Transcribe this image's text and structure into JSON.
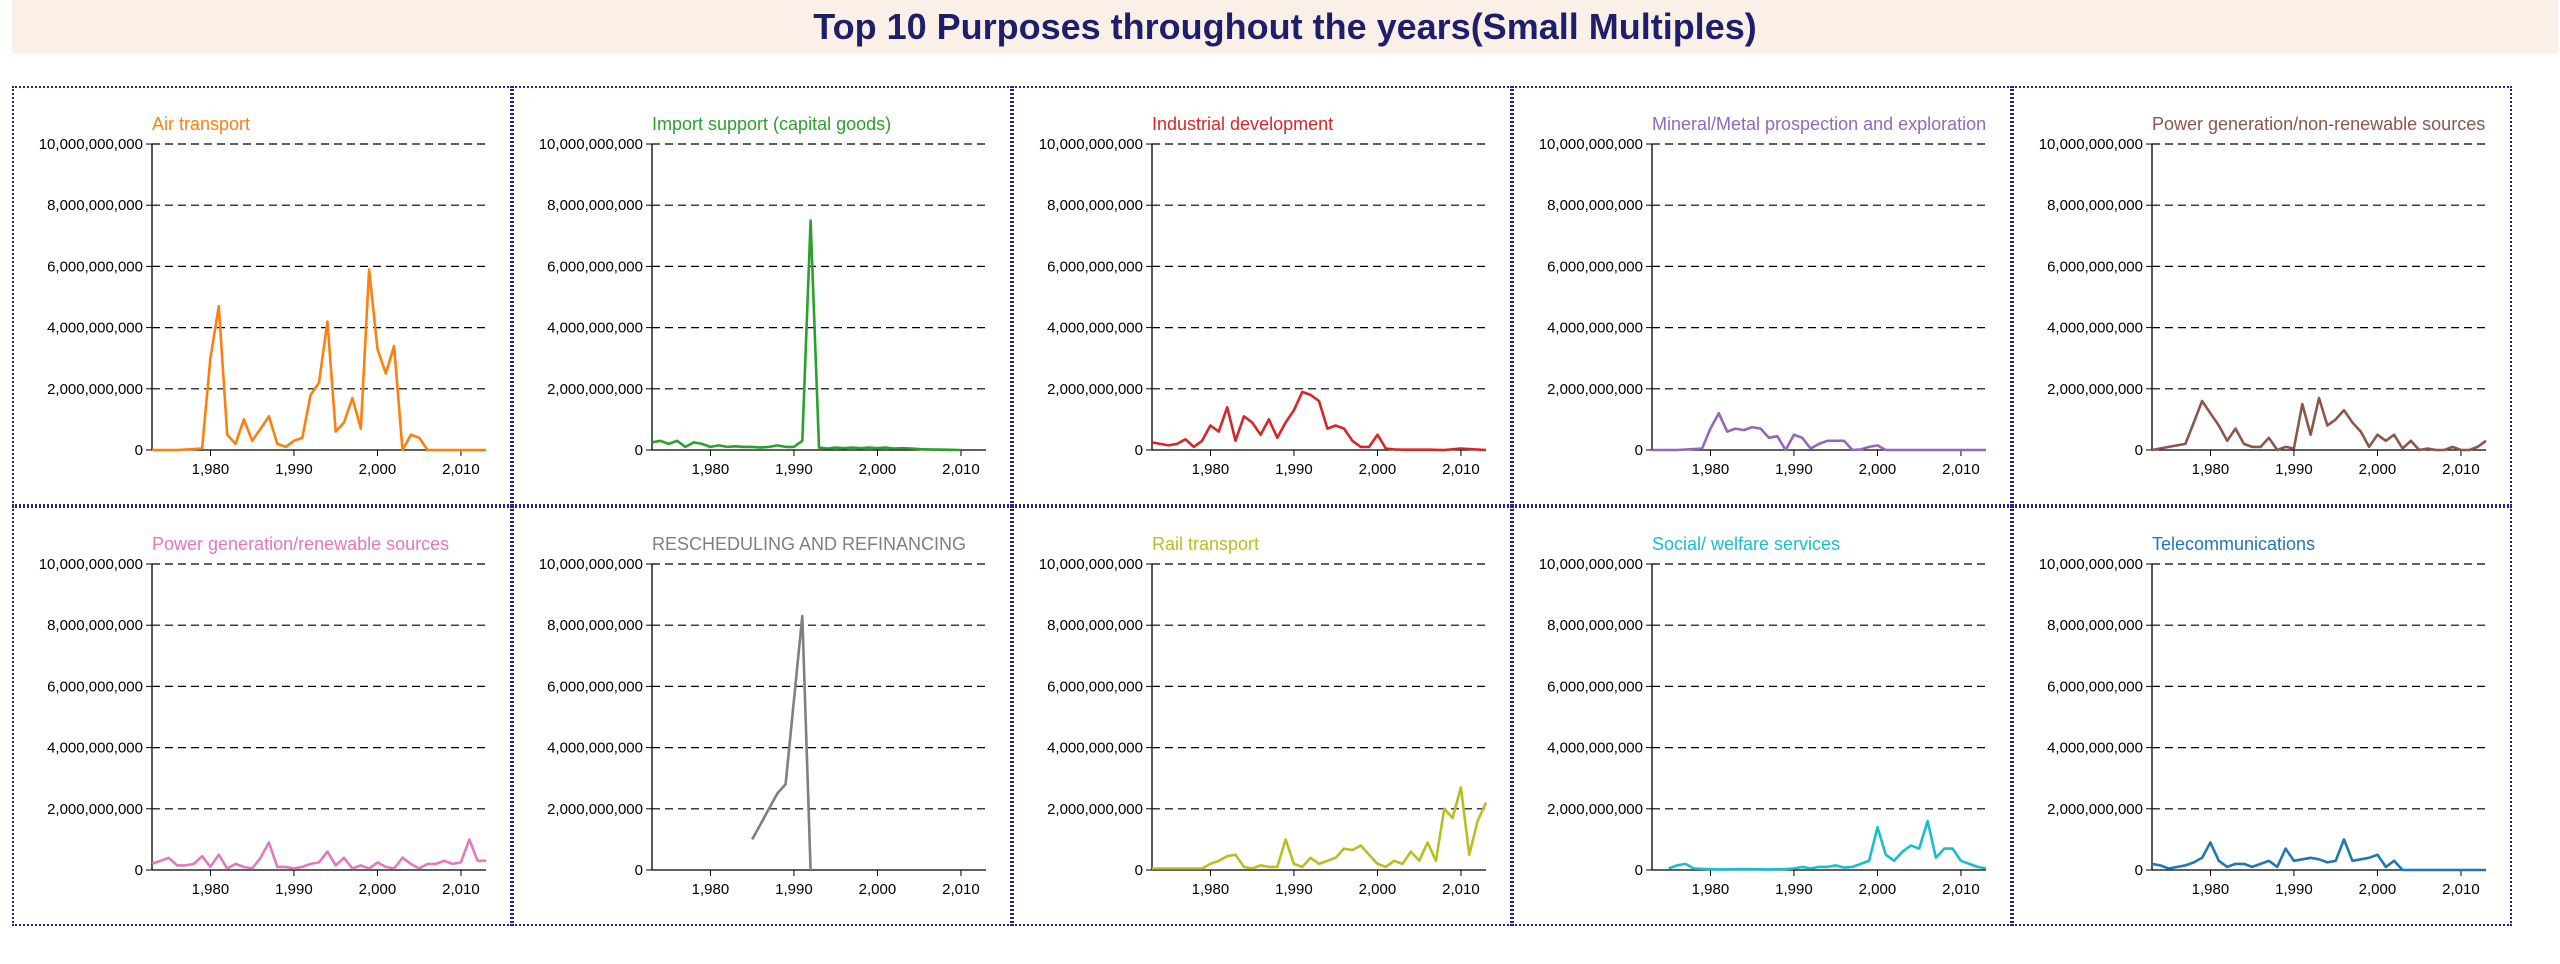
{
  "title": "Top 10 Purposes throughout the years(Small Multiples)",
  "chart_data": {
    "type": "line",
    "layout": "small-multiples",
    "x_ticks": [
      1980,
      1990,
      2000,
      2010
    ],
    "x_tick_labels": [
      "1,980",
      "1,990",
      "2,000",
      "2,010"
    ],
    "xlim": [
      1973,
      2013
    ],
    "ylim": [
      0,
      10000000000
    ],
    "y_ticks": [
      0,
      2000000000,
      4000000000,
      6000000000,
      8000000000,
      10000000000
    ],
    "y_tick_labels": [
      "0",
      "2,000,000,000",
      "4,000,000,000",
      "6,000,000,000",
      "8,000,000,000",
      "10,000,000,000"
    ],
    "grid": "horizontal-dashed",
    "series": [
      {
        "name": "Air transport",
        "color": "#ff7f0e",
        "x": [
          1973,
          1976,
          1979,
          1980,
          1981,
          1982,
          1983,
          1984,
          1985,
          1986,
          1987,
          1988,
          1989,
          1990,
          1991,
          1992,
          1993,
          1994,
          1995,
          1996,
          1997,
          1998,
          1999,
          2000,
          2001,
          2002,
          2003,
          2004,
          2005,
          2006,
          2010,
          2013
        ],
        "y": [
          0,
          0,
          50000000,
          3000000000,
          4700000000,
          500000000,
          200000000,
          1000000000,
          300000000,
          700000000,
          1100000000,
          200000000,
          100000000,
          300000000,
          400000000,
          1800000000,
          2200000000,
          4200000000,
          600000000,
          900000000,
          1700000000,
          700000000,
          5900000000,
          3300000000,
          2500000000,
          3400000000,
          0,
          500000000,
          400000000,
          0,
          0,
          0
        ]
      },
      {
        "name": "Import support (capital goods)",
        "color": "#2ca02c",
        "x": [
          1973,
          1974,
          1975,
          1976,
          1977,
          1978,
          1979,
          1980,
          1981,
          1982,
          1983,
          1984,
          1985,
          1986,
          1987,
          1988,
          1989,
          1990,
          1991,
          1992,
          1993,
          1994,
          1995,
          1996,
          1997,
          1998,
          1999,
          2000,
          2001,
          2002,
          2003,
          2004,
          2005,
          2006,
          2008,
          2010
        ],
        "y": [
          250000000,
          300000000,
          200000000,
          300000000,
          100000000,
          250000000,
          200000000,
          100000000,
          150000000,
          100000000,
          120000000,
          100000000,
          100000000,
          80000000,
          100000000,
          150000000,
          100000000,
          100000000,
          300000000,
          7500000000,
          80000000,
          50000000,
          80000000,
          60000000,
          80000000,
          60000000,
          80000000,
          60000000,
          80000000,
          50000000,
          60000000,
          50000000,
          30000000,
          20000000,
          10000000,
          0
        ]
      },
      {
        "name": "Industrial development",
        "color": "#d62728",
        "x": [
          1973,
          1975,
          1976,
          1977,
          1978,
          1979,
          1980,
          1981,
          1982,
          1983,
          1984,
          1985,
          1986,
          1987,
          1988,
          1989,
          1990,
          1991,
          1992,
          1993,
          1994,
          1995,
          1996,
          1997,
          1998,
          1999,
          2000,
          2001,
          2002,
          2003,
          2004,
          2006,
          2008,
          2010,
          2013
        ],
        "y": [
          250000000,
          150000000,
          200000000,
          350000000,
          100000000,
          300000000,
          800000000,
          600000000,
          1400000000,
          300000000,
          1100000000,
          900000000,
          500000000,
          1000000000,
          400000000,
          900000000,
          1300000000,
          1900000000,
          1800000000,
          1600000000,
          700000000,
          800000000,
          700000000,
          300000000,
          100000000,
          100000000,
          500000000,
          50000000,
          20000000,
          10000000,
          10000000,
          10000000,
          0,
          50000000,
          0
        ]
      },
      {
        "name": "Mineral/Metal prospection and exploration",
        "color": "#9467bd",
        "x": [
          1973,
          1976,
          1979,
          1980,
          1981,
          1982,
          1983,
          1984,
          1985,
          1986,
          1987,
          1988,
          1989,
          1990,
          1991,
          1992,
          1993,
          1994,
          1995,
          1996,
          1997,
          1998,
          1999,
          2000,
          2001,
          2002,
          2006,
          2010,
          2013
        ],
        "y": [
          0,
          0,
          50000000,
          700000000,
          1200000000,
          600000000,
          700000000,
          650000000,
          750000000,
          700000000,
          400000000,
          450000000,
          0,
          500000000,
          400000000,
          50000000,
          200000000,
          300000000,
          300000000,
          300000000,
          0,
          20000000,
          100000000,
          150000000,
          0,
          0,
          0,
          0,
          0
        ]
      },
      {
        "name": "Power generation/non-renewable sources",
        "color": "#8c564b",
        "x": [
          1973,
          1975,
          1977,
          1978,
          1979,
          1980,
          1981,
          1982,
          1983,
          1984,
          1985,
          1986,
          1987,
          1988,
          1989,
          1990,
          1991,
          1992,
          1993,
          1994,
          1995,
          1996,
          1997,
          1998,
          1999,
          2000,
          2001,
          2002,
          2003,
          2004,
          2005,
          2006,
          2007,
          2008,
          2009,
          2010,
          2011,
          2012,
          2013
        ],
        "y": [
          0,
          100000000,
          200000000,
          900000000,
          1600000000,
          1200000000,
          800000000,
          300000000,
          700000000,
          200000000,
          100000000,
          100000000,
          400000000,
          0,
          100000000,
          50000000,
          1500000000,
          500000000,
          1700000000,
          800000000,
          1000000000,
          1300000000,
          900000000,
          600000000,
          100000000,
          500000000,
          300000000,
          500000000,
          50000000,
          300000000,
          0,
          50000000,
          0,
          0,
          100000000,
          0,
          0,
          100000000,
          300000000
        ]
      },
      {
        "name": "Power generation/renewable sources",
        "color": "#e377c2",
        "x": [
          1973,
          1974,
          1975,
          1976,
          1977,
          1978,
          1979,
          1980,
          1981,
          1982,
          1983,
          1984,
          1985,
          1986,
          1987,
          1988,
          1989,
          1990,
          1991,
          1992,
          1993,
          1994,
          1995,
          1996,
          1997,
          1998,
          1999,
          2000,
          2001,
          2002,
          2003,
          2004,
          2005,
          2006,
          2007,
          2008,
          2009,
          2010,
          2011,
          2012,
          2013
        ],
        "y": [
          200000000,
          300000000,
          400000000,
          150000000,
          150000000,
          200000000,
          450000000,
          100000000,
          500000000,
          50000000,
          200000000,
          100000000,
          50000000,
          400000000,
          900000000,
          100000000,
          100000000,
          50000000,
          100000000,
          200000000,
          250000000,
          600000000,
          150000000,
          400000000,
          50000000,
          150000000,
          50000000,
          250000000,
          100000000,
          50000000,
          400000000,
          200000000,
          50000000,
          200000000,
          200000000,
          300000000,
          200000000,
          250000000,
          1000000000,
          300000000,
          300000000
        ]
      },
      {
        "name": "RESCHEDULING AND REFINANCING",
        "color": "#7f7f7f",
        "x": [
          1985,
          1988,
          1989,
          1991,
          1992
        ],
        "y": [
          1000000000,
          2500000000,
          2800000000,
          8300000000,
          0
        ]
      },
      {
        "name": "Rail transport",
        "color": "#bcbd22",
        "x": [
          1973,
          1976,
          1977,
          1978,
          1979,
          1980,
          1981,
          1982,
          1983,
          1984,
          1985,
          1986,
          1987,
          1988,
          1989,
          1990,
          1991,
          1992,
          1993,
          1994,
          1995,
          1996,
          1997,
          1998,
          1999,
          2000,
          2001,
          2002,
          2003,
          2004,
          2005,
          2006,
          2007,
          2008,
          2009,
          2010,
          2011,
          2012,
          2013
        ],
        "y": [
          50000000,
          50000000,
          50000000,
          50000000,
          50000000,
          200000000,
          300000000,
          450000000,
          500000000,
          100000000,
          50000000,
          150000000,
          100000000,
          100000000,
          1000000000,
          200000000,
          100000000,
          400000000,
          200000000,
          300000000,
          400000000,
          700000000,
          650000000,
          800000000,
          500000000,
          200000000,
          100000000,
          300000000,
          200000000,
          600000000,
          300000000,
          900000000,
          300000000,
          2000000000,
          1700000000,
          2700000000,
          500000000,
          1600000000,
          2200000000
        ]
      },
      {
        "name": "Social/ welfare services",
        "color": "#17becf",
        "x": [
          1975,
          1976,
          1977,
          1978,
          1981,
          1984,
          1987,
          1989,
          1990,
          1991,
          1992,
          1993,
          1994,
          1995,
          1996,
          1997,
          1998,
          1999,
          2000,
          2001,
          2002,
          2003,
          2004,
          2005,
          2006,
          2007,
          2008,
          2009,
          2010,
          2011,
          2012,
          2013
        ],
        "y": [
          50000000,
          150000000,
          200000000,
          50000000,
          20000000,
          30000000,
          20000000,
          30000000,
          50000000,
          100000000,
          50000000,
          100000000,
          100000000,
          150000000,
          80000000,
          100000000,
          200000000,
          300000000,
          1400000000,
          500000000,
          300000000,
          600000000,
          800000000,
          700000000,
          1600000000,
          400000000,
          700000000,
          700000000,
          300000000,
          200000000,
          100000000,
          50000000
        ]
      },
      {
        "name": "Telecommunications",
        "color": "#1f77b4",
        "x": [
          1973,
          1974,
          1975,
          1977,
          1978,
          1979,
          1980,
          1981,
          1982,
          1983,
          1984,
          1985,
          1986,
          1987,
          1988,
          1989,
          1990,
          1991,
          1992,
          1993,
          1994,
          1995,
          1996,
          1997,
          1998,
          1999,
          2000,
          2001,
          2002,
          2003,
          2004,
          2006,
          2010,
          2013
        ],
        "y": [
          200000000,
          150000000,
          50000000,
          150000000,
          250000000,
          400000000,
          900000000,
          300000000,
          100000000,
          200000000,
          200000000,
          100000000,
          200000000,
          300000000,
          100000000,
          700000000,
          300000000,
          350000000,
          400000000,
          350000000,
          250000000,
          300000000,
          1000000000,
          300000000,
          350000000,
          400000000,
          500000000,
          100000000,
          300000000,
          0,
          0,
          0,
          0,
          0
        ]
      }
    ]
  }
}
